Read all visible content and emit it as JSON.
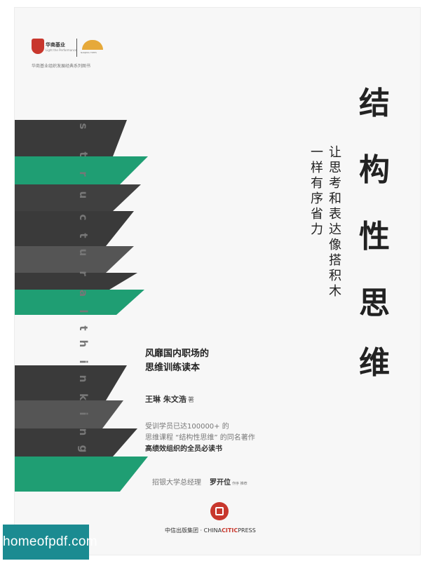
{
  "book": {
    "title_chars": [
      "结",
      "构",
      "性",
      "思",
      "维"
    ],
    "subtitle_line1": "让思考和表达像搭积木",
    "subtitle_line2": "一样有序省力",
    "spine_letters": [
      "s",
      "t",
      "r",
      "u",
      "c",
      "t",
      "u",
      "r",
      "a",
      "l",
      "t",
      "h",
      "i",
      "n",
      "k",
      "i",
      "n",
      "g"
    ],
    "tagline_line1": "风靡国内职场的",
    "tagline_line2": "思维训练读本",
    "authors": "王琳 朱文浩",
    "author_suffix": "著",
    "blurb_line1": "受训学员已达100000+ 的",
    "blurb_line2": "思维课程 “结构性思维” 的同名著作",
    "blurb_line3": "高绩效组织的全员必读书",
    "recommend_role": "招银大学总经理",
    "recommend_name": "罗开位",
    "recommend_suffix": "作序 推荐",
    "publisher_cn": "中信出版集团",
    "publisher_en_a": "CHINA",
    "publisher_en_b": "CITIC",
    "publisher_en_c": "PRESS",
    "series": "华商基业组织发展经典系列图书",
    "logo_left_text": "华商基业",
    "logo_left_sub": "Light the Performance",
    "logo_right_text": "NANJING TIMES"
  },
  "watermark": {
    "text": "homeofpdf.com"
  },
  "colors": {
    "green": "#1f9e73",
    "dark": "#3a3a3a",
    "mid": "#555555",
    "red": "#c8372d",
    "teal": "#1b8b91"
  }
}
